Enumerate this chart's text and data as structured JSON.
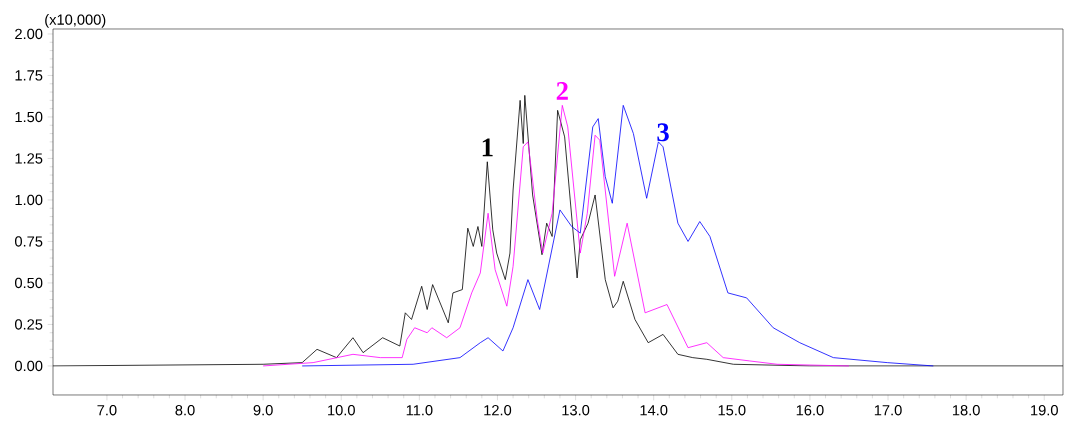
{
  "chart_data": {
    "type": "line",
    "xlim": [
      6.31,
      19.24
    ],
    "ylim": [
      -0.175,
      2.03
    ],
    "xticks": [
      {
        "value": 7,
        "label": "7.0"
      },
      {
        "value": 8,
        "label": "8.0"
      },
      {
        "value": 9,
        "label": "9.0"
      },
      {
        "value": 10,
        "label": "10.0"
      },
      {
        "value": 11,
        "label": "11.0"
      },
      {
        "value": 12,
        "label": "12.0"
      },
      {
        "value": 13,
        "label": "13.0"
      },
      {
        "value": 14,
        "label": "14.0"
      },
      {
        "value": 15,
        "label": "15.0"
      },
      {
        "value": 16,
        "label": "16.0"
      },
      {
        "value": 17,
        "label": "17.0"
      },
      {
        "value": 18,
        "label": "18.0"
      },
      {
        "value": 19,
        "label": "19.0"
      }
    ],
    "yticks": [
      {
        "value": 0,
        "label": "0.00"
      },
      {
        "value": 0.25,
        "label": "0.25"
      },
      {
        "value": 0.5,
        "label": "0.50"
      },
      {
        "value": 0.75,
        "label": "0.75"
      },
      {
        "value": 1,
        "label": "1.00"
      },
      {
        "value": 1.25,
        "label": "1.25"
      },
      {
        "value": 1.5,
        "label": "1.50"
      },
      {
        "value": 1.75,
        "label": "1.75"
      },
      {
        "value": 2,
        "label": "2.00"
      }
    ],
    "grid": false,
    "marker": "none",
    "line_style": "solid",
    "annotations": [
      "(x10,000)",
      {
        "text": "1",
        "x": 11.87,
        "y": 1.23
      },
      {
        "text": "2",
        "x": 12.83,
        "y": 1.57
      },
      {
        "text": "3",
        "x": 14.12,
        "y": 1.32
      }
    ],
    "series": [
      {
        "color": "#000000",
        "x": [
          6.31,
          9.0,
          9.5,
          9.69,
          9.94,
          10.15,
          10.28,
          10.53,
          10.75,
          10.82,
          10.9,
          11.03,
          11.1,
          11.17,
          11.37,
          11.43,
          11.55,
          11.62,
          11.69,
          11.75,
          11.8,
          11.87,
          11.94,
          11.99,
          12.1,
          12.16,
          12.2,
          12.29,
          12.33,
          12.35,
          12.45,
          12.57,
          12.63,
          12.7,
          12.77,
          12.86,
          13.02,
          13.06,
          13.16,
          13.25,
          13.38,
          13.48,
          13.54,
          13.61,
          13.76,
          13.93,
          14.12,
          14.31,
          14.5,
          14.68,
          15.02,
          16.0,
          19.24
        ],
        "values": [
          0.0,
          0.01,
          0.02,
          0.1,
          0.05,
          0.17,
          0.08,
          0.17,
          0.12,
          0.32,
          0.28,
          0.48,
          0.34,
          0.49,
          0.26,
          0.44,
          0.46,
          0.83,
          0.72,
          0.84,
          0.72,
          1.23,
          0.82,
          0.68,
          0.52,
          0.68,
          1.06,
          1.6,
          1.34,
          1.63,
          1.03,
          0.67,
          0.86,
          0.78,
          1.54,
          1.38,
          0.53,
          0.76,
          0.86,
          1.03,
          0.52,
          0.35,
          0.39,
          0.51,
          0.28,
          0.14,
          0.19,
          0.07,
          0.05,
          0.04,
          0.01,
          0.0,
          0.0
        ]
      },
      {
        "color": "#ff00ff",
        "x": [
          9.0,
          9.64,
          10.15,
          10.5,
          10.78,
          10.84,
          10.94,
          11.1,
          11.16,
          11.35,
          11.52,
          11.67,
          11.78,
          11.88,
          11.97,
          12.12,
          12.2,
          12.33,
          12.39,
          12.45,
          12.51,
          12.58,
          12.7,
          12.83,
          12.9,
          13.06,
          13.15,
          13.25,
          13.31,
          13.5,
          13.66,
          13.89,
          14.17,
          14.44,
          14.68,
          14.89,
          15.23,
          15.58,
          16.5
        ],
        "values": [
          0.0,
          0.02,
          0.07,
          0.05,
          0.05,
          0.16,
          0.23,
          0.2,
          0.23,
          0.17,
          0.23,
          0.44,
          0.56,
          0.92,
          0.58,
          0.36,
          0.6,
          1.32,
          1.35,
          1.12,
          0.88,
          0.68,
          0.92,
          1.57,
          1.44,
          0.68,
          0.92,
          1.39,
          1.36,
          0.54,
          0.86,
          0.32,
          0.37,
          0.11,
          0.14,
          0.05,
          0.03,
          0.01,
          0.0
        ]
      },
      {
        "color": "#0000ff",
        "x": [
          9.5,
          10.92,
          11.52,
          11.78,
          11.88,
          12.07,
          12.2,
          12.39,
          12.54,
          12.8,
          12.95,
          13.06,
          13.22,
          13.29,
          13.38,
          13.47,
          13.61,
          13.74,
          13.91,
          14.06,
          14.12,
          14.31,
          14.44,
          14.59,
          14.72,
          14.95,
          15.19,
          15.53,
          15.87,
          16.3,
          16.99,
          17.58
        ],
        "values": [
          0.0,
          0.01,
          0.05,
          0.14,
          0.17,
          0.09,
          0.23,
          0.52,
          0.34,
          0.94,
          0.84,
          0.8,
          1.44,
          1.49,
          1.14,
          0.98,
          1.57,
          1.4,
          1.01,
          1.35,
          1.32,
          0.86,
          0.75,
          0.87,
          0.78,
          0.44,
          0.41,
          0.23,
          0.14,
          0.05,
          0.02,
          0.0
        ]
      }
    ]
  }
}
